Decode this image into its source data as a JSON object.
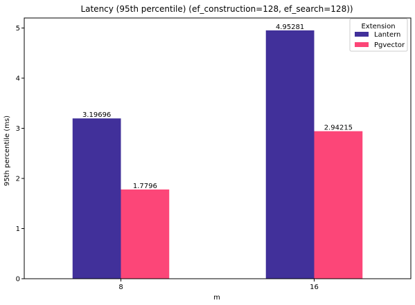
{
  "chart_data": {
    "type": "bar",
    "title": "Latency (95th percentile) (ef_construction=128, ef_search=128))",
    "xlabel": "m",
    "ylabel": "95th percentile (ms)",
    "categories": [
      "8",
      "16"
    ],
    "series": [
      {
        "name": "Lantern",
        "color": "#41309a",
        "values": [
          3.19696,
          4.95281
        ],
        "labels": [
          "3.19696",
          "4.95281"
        ]
      },
      {
        "name": "Pgvector",
        "color": "#fc4678",
        "values": [
          1.7796,
          2.94215
        ],
        "labels": [
          "1.7796",
          "2.94215"
        ]
      }
    ],
    "yticks": [
      0,
      1,
      2,
      3,
      4,
      5
    ],
    "ylim": [
      0,
      5.2
    ],
    "grid": false,
    "legend": {
      "title": "Extension",
      "placement": "top-right"
    }
  }
}
